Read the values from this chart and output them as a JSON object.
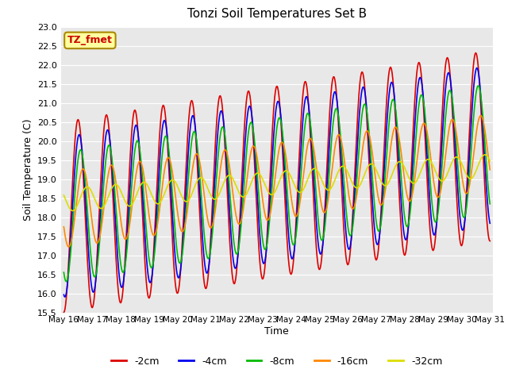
{
  "title": "Tonzi Soil Temperatures Set B",
  "ylabel": "Soil Temperature (C)",
  "xlabel": "Time",
  "legend_label": "TZ_fmet",
  "ylim": [
    15.5,
    23.0
  ],
  "yticks": [
    15.5,
    16.0,
    16.5,
    17.0,
    17.5,
    18.0,
    18.5,
    19.0,
    19.5,
    20.0,
    20.5,
    21.0,
    21.5,
    22.0,
    22.5,
    23.0
  ],
  "series": [
    {
      "label": "-2cm",
      "color": "#dd0000",
      "amplitude": 2.5,
      "phase": 0.0,
      "trend": 0.125,
      "mean": 18.0
    },
    {
      "label": "-4cm",
      "color": "#0000ee",
      "amplitude": 2.1,
      "phase": 0.25,
      "trend": 0.125,
      "mean": 18.0
    },
    {
      "label": "-8cm",
      "color": "#00bb00",
      "amplitude": 1.7,
      "phase": 0.55,
      "trend": 0.12,
      "mean": 18.0
    },
    {
      "label": "-16cm",
      "color": "#ff8800",
      "amplitude": 1.0,
      "phase": 1.1,
      "trend": 0.1,
      "mean": 18.2
    },
    {
      "label": "-32cm",
      "color": "#dddd00",
      "amplitude": 0.3,
      "phase": 2.0,
      "trend": 0.06,
      "mean": 18.45
    }
  ],
  "period_hours": 24,
  "start_day": 16,
  "end_day": 31,
  "n_points": 720,
  "fig_bg": "#ffffff",
  "plot_bg": "#e8e8e8",
  "grid_color": "#ffffff",
  "xtick_days": [
    16,
    17,
    18,
    19,
    20,
    21,
    22,
    23,
    24,
    25,
    26,
    27,
    28,
    29,
    30,
    31
  ]
}
